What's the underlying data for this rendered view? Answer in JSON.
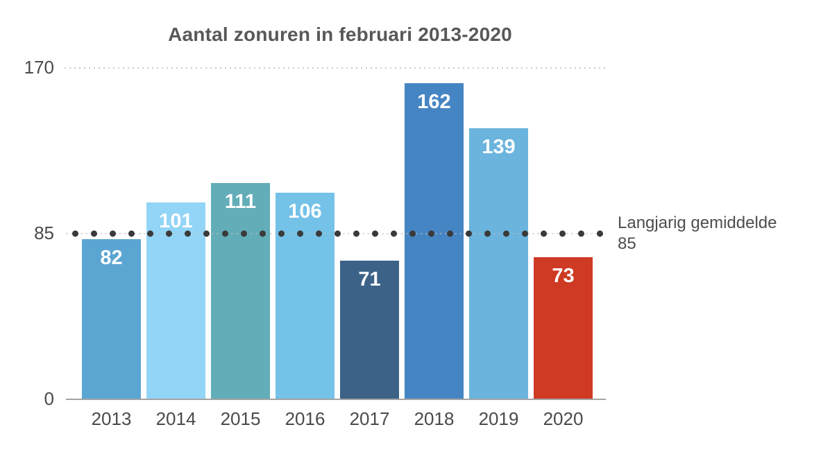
{
  "chart_data": {
    "type": "bar",
    "title": "Aantal zonuren in februari 2013-2020",
    "categories": [
      "2013",
      "2014",
      "2015",
      "2016",
      "2017",
      "2018",
      "2019",
      "2020"
    ],
    "values": [
      82,
      101,
      111,
      106,
      71,
      162,
      139,
      73
    ],
    "bar_colors": [
      "#5BA5D2",
      "#93D5F6",
      "#62ADB8",
      "#74C2E8",
      "#3C6288",
      "#4685C3",
      "#6AB4DE",
      "#CE3A23"
    ],
    "xlabel": "",
    "ylabel": "",
    "ylim": [
      0,
      170
    ],
    "yticks": [
      170,
      85,
      0
    ],
    "top_gridline_value": 170,
    "grid": "dotted-top-gridline",
    "legend": "none",
    "average_line": {
      "value": 85,
      "label": "Langjarig gemiddelde",
      "value_label": "85",
      "style": "large-dark-dots-with-fine-dashes"
    }
  },
  "colors": {
    "background": "#FFFFFF",
    "title_text": "#58585A",
    "axis_text": "#4A4A4A",
    "annotation_text": "#4D4D4D",
    "bar_value_text": "#FFFFFF",
    "axis_line": "#A3A3A3",
    "gridline": "#C8C8C8",
    "avg_dot": "#3A3A3A",
    "avg_dash": "#BDBDBD",
    "highlight_red": "#CE3A23"
  }
}
